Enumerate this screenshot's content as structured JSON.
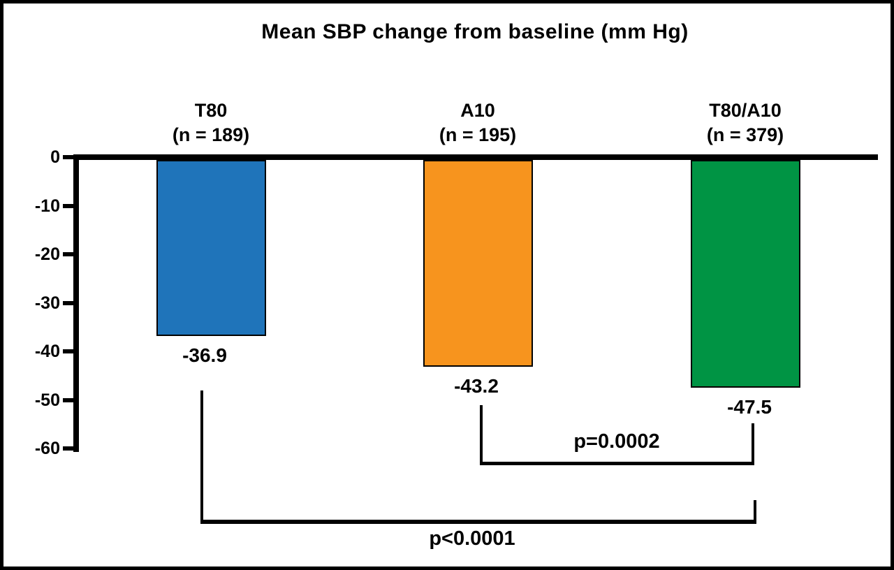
{
  "frame": {
    "background": "#FFFFFF",
    "border_color": "#000000"
  },
  "chart_data": {
    "type": "bar",
    "title": "Mean SBP change from baseline (mm Hg)",
    "xlabel": "",
    "ylabel": "",
    "ylim": [
      -60,
      0
    ],
    "yticks": [
      "0",
      "-10",
      "-20",
      "-30",
      "-40",
      "-50",
      "-60"
    ],
    "ytick_values": [
      0,
      -10,
      -20,
      -30,
      -40,
      -50,
      -60
    ],
    "grid": false,
    "legend": false,
    "axis_color": "#000000",
    "orientation": "vertical-negative",
    "categories": [
      "T80",
      "A10",
      "T80/A10"
    ],
    "category_sublabels": [
      "(n = 189)",
      "(n = 195)",
      "(n = 379)"
    ],
    "values": [
      -36.9,
      -43.2,
      -47.5
    ],
    "value_labels": [
      "-36.9",
      "-43.2",
      "-47.5"
    ],
    "bar_colors": [
      "#1F74BA",
      "#F7941E",
      "#009444"
    ],
    "bar_border_color": "#000000",
    "comparisons": [
      {
        "label": "p=0.0002",
        "between": [
          "A10",
          "T80/A10"
        ],
        "from_index": 1,
        "to_index": 2
      },
      {
        "label": "p<0.0001",
        "between": [
          "T80",
          "T80/A10"
        ],
        "from_index": 0,
        "to_index": 2
      }
    ]
  }
}
